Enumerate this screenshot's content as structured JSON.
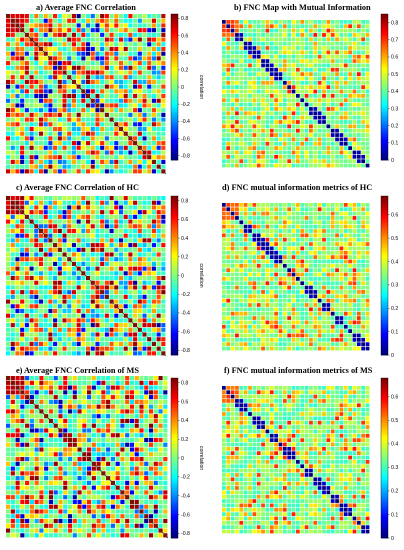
{
  "chart_data": [
    {
      "id": "a",
      "type": "heatmap",
      "title": "a) Average FNC Correlation",
      "n": 34,
      "seed": 11,
      "kind": "corr",
      "colorbar": {
        "ticks": [
          "0.8",
          "0.6",
          "0.4",
          "0.2",
          "0",
          "-0.2",
          "-0.4",
          "-0.6",
          "-0.8"
        ],
        "values": [
          0.8,
          0.6,
          0.4,
          0.2,
          0,
          -0.2,
          -0.4,
          -0.6,
          -0.8
        ],
        "label": "correlation",
        "range": [
          -0.85,
          0.85
        ]
      }
    },
    {
      "id": "b",
      "type": "heatmap",
      "title": "b) FNC Map with Mutual Information",
      "n": 34,
      "seed": 23,
      "kind": "mi",
      "colorbar": {
        "ticks": [
          "0.8",
          "0.7",
          "0.6",
          "0.5",
          "0.4",
          "0.3",
          "0.2",
          "0.1",
          "0"
        ],
        "values": [
          0.8,
          0.7,
          0.6,
          0.5,
          0.4,
          0.3,
          0.2,
          0.1,
          0
        ],
        "label": "",
        "range": [
          0,
          0.85
        ]
      }
    },
    {
      "id": "c",
      "type": "heatmap",
      "title": "c) Average FNC Correlation of HC",
      "n": 34,
      "seed": 37,
      "kind": "corr",
      "colorbar": {
        "ticks": [
          "0.8",
          "0.6",
          "0.4",
          "0.2",
          "0",
          "-0.2",
          "-0.4",
          "-0.6",
          "-0.8"
        ],
        "values": [
          0.8,
          0.6,
          0.4,
          0.2,
          0,
          -0.2,
          -0.4,
          -0.6,
          -0.8
        ],
        "label": "correlation",
        "range": [
          -0.85,
          0.85
        ]
      }
    },
    {
      "id": "d",
      "type": "heatmap",
      "title": "d) FNC mutual information metrics of HC",
      "n": 34,
      "seed": 41,
      "kind": "mi",
      "colorbar": {
        "ticks": [
          "0.6",
          "0.5",
          "0.4",
          "0.3",
          "0.2",
          "0.1",
          "0"
        ],
        "values": [
          0.6,
          0.5,
          0.4,
          0.3,
          0.2,
          0.1,
          0
        ],
        "label": "",
        "range": [
          0,
          0.68
        ]
      }
    },
    {
      "id": "e",
      "type": "heatmap",
      "title": "e) Average FNC Correlation of MS",
      "n": 34,
      "seed": 53,
      "kind": "corr",
      "colorbar": {
        "ticks": [
          "0.8",
          "0.6",
          "0.4",
          "0.2",
          "0",
          "-0.2",
          "-0.4",
          "-0.6",
          "-0.8"
        ],
        "values": [
          0.8,
          0.6,
          0.4,
          0.2,
          0,
          -0.2,
          -0.4,
          -0.6,
          -0.8
        ],
        "label": "correlation",
        "range": [
          -0.85,
          0.85
        ]
      }
    },
    {
      "id": "f",
      "type": "heatmap",
      "title": "f) FNC mutual information metrics of MS",
      "n": 34,
      "seed": 67,
      "kind": "mi",
      "colorbar": {
        "ticks": [
          "0.6",
          "0.5",
          "0.4",
          "0.3",
          "0.2",
          "0.1",
          "0"
        ],
        "values": [
          0.6,
          0.5,
          0.4,
          0.3,
          0.2,
          0.1,
          0
        ],
        "label": "",
        "range": [
          0,
          0.68
        ]
      }
    }
  ]
}
